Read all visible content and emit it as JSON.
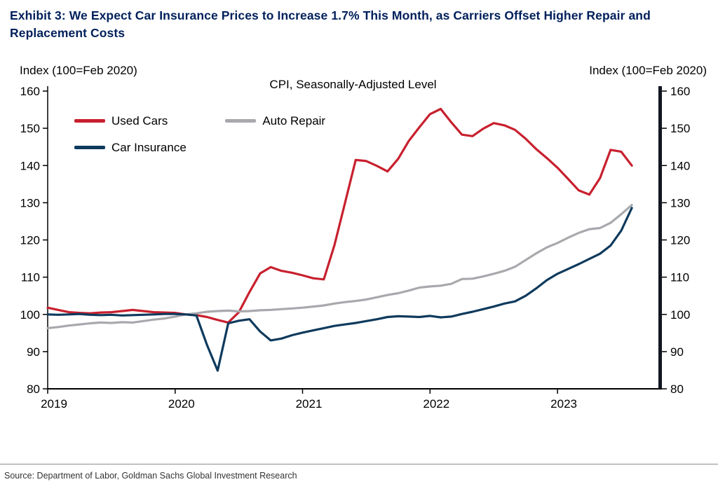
{
  "header": {
    "title": "Exhibit 3: We Expect Car Insurance Prices to Increase 1.7% This Month, as Carriers Offset Higher Repair and Replacement Costs",
    "title_color": "#00205b"
  },
  "axis_notes": {
    "left": "Index (100=Feb 2020)",
    "right": "Index (100=Feb 2020)"
  },
  "footer": {
    "source": "Source: Department of Labor, Goldman Sachs Global Investment Research"
  },
  "chart_data": {
    "type": "line",
    "subtitle": "CPI, Seasonally-Adjusted Level",
    "grid": false,
    "legend_position": "top-left",
    "ylim": [
      80,
      160
    ],
    "y_ticks": [
      80,
      90,
      100,
      110,
      120,
      130,
      140,
      150,
      160
    ],
    "x_tick_labels": [
      "2019",
      "2020",
      "2021",
      "2022",
      "2023"
    ],
    "x_tick_months": [
      0,
      12,
      24,
      36,
      48
    ],
    "x_domain_months": [
      0,
      57.5
    ],
    "axis_color": "#000000",
    "right_axis_bar_color": "#111722",
    "months": [
      "Jan 2019",
      "Feb 2019",
      "Mar 2019",
      "Apr 2019",
      "May 2019",
      "Jun 2019",
      "Jul 2019",
      "Aug 2019",
      "Sep 2019",
      "Oct 2019",
      "Nov 2019",
      "Dec 2019",
      "Jan 2020",
      "Feb 2020",
      "Mar 2020",
      "Apr 2020",
      "May 2020",
      "Jun 2020",
      "Jul 2020",
      "Aug 2020",
      "Sep 2020",
      "Oct 2020",
      "Nov 2020",
      "Dec 2020",
      "Jan 2021",
      "Feb 2021",
      "Mar 2021",
      "Apr 2021",
      "May 2021",
      "Jun 2021",
      "Jul 2021",
      "Aug 2021",
      "Sep 2021",
      "Oct 2021",
      "Nov 2021",
      "Dec 2021",
      "Jan 2022",
      "Feb 2022",
      "Mar 2022",
      "Apr 2022",
      "May 2022",
      "Jun 2022",
      "Jul 2022",
      "Aug 2022",
      "Sep 2022",
      "Oct 2022",
      "Nov 2022",
      "Dec 2022",
      "Jan 2023",
      "Feb 2023",
      "Mar 2023",
      "Apr 2023",
      "May 2023",
      "Jun 2023",
      "Jul 2023",
      "Aug 2023"
    ],
    "series": [
      {
        "name": "Used Cars",
        "color": "#c8202e",
        "values": [
          101.8,
          101.2,
          100.6,
          100.4,
          100.3,
          100.5,
          100.6,
          100.9,
          101.2,
          100.9,
          100.6,
          100.5,
          100.4,
          100.0,
          99.8,
          99.3,
          98.5,
          97.8,
          100.6,
          106.0,
          111.0,
          112.7,
          111.7,
          111.2,
          110.5,
          109.7,
          109.4,
          118.6,
          130.0,
          141.5,
          141.2,
          139.9,
          138.4,
          141.8,
          146.6,
          150.3,
          153.8,
          155.2,
          151.6,
          148.3,
          147.9,
          149.9,
          151.4,
          150.8,
          149.6,
          147.2,
          144.4,
          142.0,
          139.4,
          136.4,
          133.3,
          132.2,
          136.6,
          144.2,
          143.7,
          140.0
        ]
      },
      {
        "name": "Auto Repair",
        "color": "#a8a9ad",
        "values": [
          96.3,
          96.6,
          97.0,
          97.3,
          97.6,
          97.8,
          97.7,
          97.9,
          97.8,
          98.2,
          98.6,
          98.9,
          99.4,
          100.0,
          100.3,
          100.7,
          100.9,
          101.0,
          100.8,
          100.9,
          101.1,
          101.2,
          101.4,
          101.6,
          101.8,
          102.1,
          102.4,
          102.9,
          103.3,
          103.6,
          104.0,
          104.6,
          105.2,
          105.7,
          106.4,
          107.2,
          107.5,
          107.7,
          108.2,
          109.5,
          109.6,
          110.2,
          110.9,
          111.7,
          112.8,
          114.6,
          116.4,
          118.0,
          119.2,
          120.6,
          121.9,
          122.9,
          123.2,
          124.6,
          126.9,
          129.4
        ]
      },
      {
        "name": "Car Insurance",
        "color": "#0e3a5d",
        "values": [
          100.0,
          99.9,
          100.0,
          100.1,
          99.9,
          99.8,
          99.9,
          99.7,
          99.8,
          99.9,
          100.0,
          100.1,
          100.1,
          100.0,
          99.7,
          91.8,
          84.9,
          97.6,
          98.3,
          98.7,
          95.4,
          93.0,
          93.5,
          94.4,
          95.1,
          95.7,
          96.3,
          96.9,
          97.3,
          97.7,
          98.2,
          98.7,
          99.3,
          99.5,
          99.4,
          99.3,
          99.6,
          99.2,
          99.4,
          100.1,
          100.7,
          101.4,
          102.1,
          102.9,
          103.5,
          105.0,
          107.0,
          109.2,
          110.9,
          112.2,
          113.5,
          114.9,
          116.3,
          118.5,
          122.5,
          128.6
        ]
      }
    ]
  }
}
